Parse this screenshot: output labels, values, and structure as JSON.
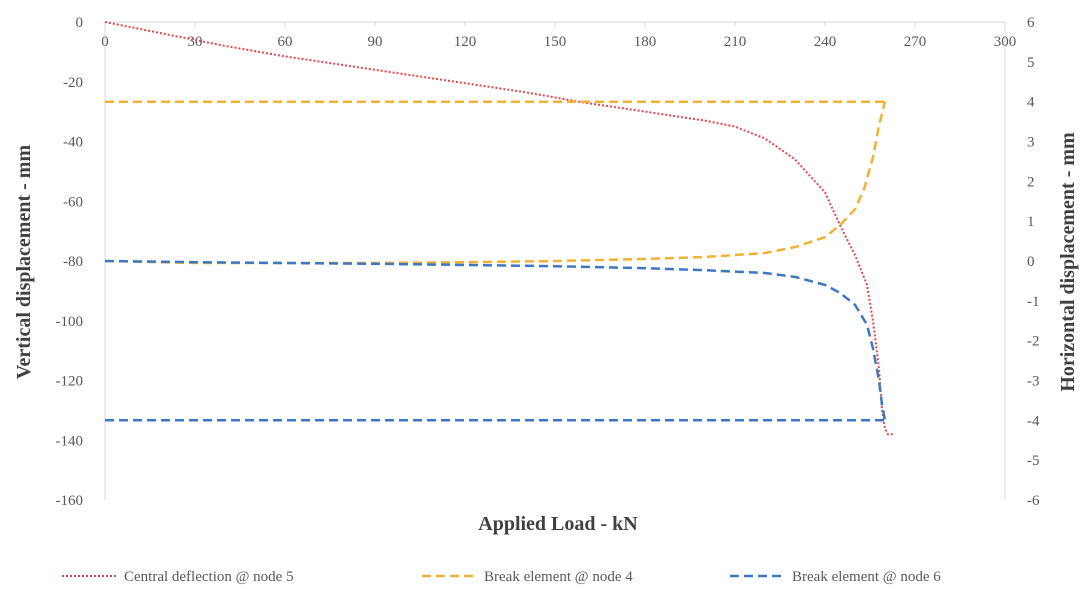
{
  "chart_data": {
    "type": "line",
    "title": "",
    "xlabel": "Applied Load  -  kN",
    "ylabel_left": "Vertical displacement  -  mm",
    "ylabel_right": "Horizontal displacement  -  mm",
    "xlim": [
      0,
      300
    ],
    "ylim_left": [
      -160,
      0
    ],
    "ylim_right": [
      -6,
      6
    ],
    "x_ticks": [
      "0",
      "30",
      "60",
      "90",
      "120",
      "150",
      "180",
      "210",
      "240",
      "270",
      "300"
    ],
    "y_left_ticks": [
      "0",
      "-20",
      "-40",
      "-60",
      "-80",
      "-100",
      "-120",
      "-140",
      "-160"
    ],
    "y_right_ticks": [
      "6",
      "5",
      "4",
      "3",
      "2",
      "1",
      "0",
      "-1",
      "-2",
      "-3",
      "-4",
      "-5",
      "-6"
    ],
    "grid": false,
    "legend_position": "bottom",
    "series": [
      {
        "name": "Central deflection @ node 5",
        "axis": "left",
        "style": "dotted",
        "color": "#e8434a",
        "points": [
          [
            0,
            0
          ],
          [
            20,
            -4
          ],
          [
            40,
            -8
          ],
          [
            60,
            -11.5
          ],
          [
            80,
            -14.5
          ],
          [
            100,
            -17.5
          ],
          [
            120,
            -20.5
          ],
          [
            140,
            -23.5
          ],
          [
            160,
            -27
          ],
          [
            180,
            -30
          ],
          [
            200,
            -33
          ],
          [
            210,
            -35
          ],
          [
            220,
            -39
          ],
          [
            230,
            -46
          ],
          [
            240,
            -57
          ],
          [
            245,
            -68
          ],
          [
            250,
            -78
          ],
          [
            254,
            -88
          ],
          [
            256,
            -100
          ],
          [
            258,
            -116
          ],
          [
            259,
            -130
          ],
          [
            260,
            -136
          ],
          [
            261,
            -138
          ],
          [
            263,
            -138
          ]
        ]
      },
      {
        "name": "Break element @ node 4",
        "axis": "right",
        "style": "dashed",
        "color": "#f2b134",
        "points": [
          [
            0,
            0
          ],
          [
            30,
            -0.05
          ],
          [
            60,
            -0.05
          ],
          [
            90,
            -0.05
          ],
          [
            120,
            -0.03
          ],
          [
            150,
            0
          ],
          [
            180,
            0.05
          ],
          [
            200,
            0.1
          ],
          [
            210,
            0.15
          ],
          [
            220,
            0.2
          ],
          [
            230,
            0.35
          ],
          [
            240,
            0.6
          ],
          [
            245,
            0.9
          ],
          [
            250,
            1.3
          ],
          [
            253,
            1.8
          ],
          [
            256,
            2.6
          ],
          [
            258,
            3.4
          ],
          [
            260,
            4
          ]
        ],
        "extra_segments": [
          [
            [
              0,
              4
            ],
            [
              260,
              4
            ]
          ]
        ]
      },
      {
        "name": "Break element @ node 6",
        "axis": "right",
        "style": "dashed",
        "color": "#3c78c3",
        "points": [
          [
            0,
            0
          ],
          [
            30,
            -0.03
          ],
          [
            60,
            -0.05
          ],
          [
            90,
            -0.07
          ],
          [
            120,
            -0.1
          ],
          [
            150,
            -0.13
          ],
          [
            180,
            -0.18
          ],
          [
            200,
            -0.23
          ],
          [
            220,
            -0.3
          ],
          [
            230,
            -0.4
          ],
          [
            240,
            -0.6
          ],
          [
            245,
            -0.8
          ],
          [
            250,
            -1.1
          ],
          [
            254,
            -1.6
          ],
          [
            256,
            -2.2
          ],
          [
            258,
            -3
          ],
          [
            259,
            -3.6
          ],
          [
            260,
            -4
          ]
        ],
        "extra_segments": [
          [
            [
              0,
              -4
            ],
            [
              260,
              -4
            ]
          ]
        ]
      }
    ]
  }
}
